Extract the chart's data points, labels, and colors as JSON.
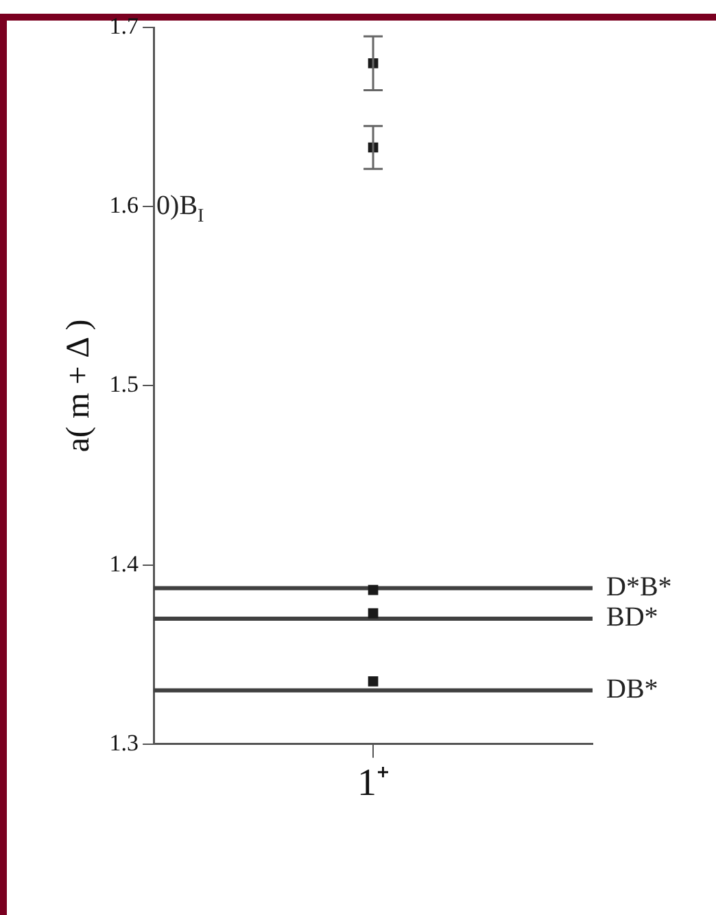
{
  "chart_data": {
    "type": "scatter",
    "categories": [
      "1⁺"
    ],
    "ylabel": "a( m + Δ )",
    "ylim": [
      1.3,
      1.7
    ],
    "yticks": [
      1.3,
      1.4,
      1.5,
      1.6,
      1.7
    ],
    "series": [
      {
        "color": "#1a1a1a",
        "x": [
          "1⁺",
          "1⁺",
          "1⁺",
          "1⁺",
          "1⁺"
        ],
        "values": [
          1.68,
          1.633,
          1.386,
          1.373,
          1.335
        ],
        "errors": [
          0.015,
          0.012,
          null,
          null,
          null
        ]
      }
    ],
    "marker": "square",
    "grid": false,
    "legend": false,
    "ref_lines": [
      {
        "axis": "y",
        "value": 1.387,
        "label": "D*B*",
        "color": "#404040"
      },
      {
        "axis": "y",
        "value": 1.37,
        "label": "BD*",
        "color": "#404040"
      },
      {
        "axis": "y",
        "value": 1.33,
        "label": "DB*",
        "color": "#404040"
      }
    ],
    "annotations": [
      "0)B$_{I}$"
    ]
  }
}
